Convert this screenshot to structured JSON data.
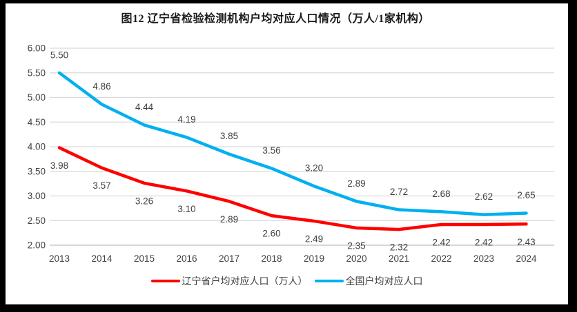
{
  "title": "图12 辽宁省检验检测机构户均对应人口情况（万人/1家机构）",
  "legend": {
    "liaoning_label": "辽宁省户均对应人口（万人）",
    "national_label": "全国户均对应人口"
  },
  "colors": {
    "liaoning_series": "#FF0000",
    "national_series": "#00B0F0",
    "gridline": "#D9D9D9",
    "axis_line": "#BFBFBF",
    "tick_text": "#404040",
    "data_label_text": "#404040",
    "frame": "#000000",
    "background": "#FFFFFF"
  },
  "chart_data": {
    "type": "line",
    "title": "图12 辽宁省检验检测机构户均对应人口情况（万人/1家机构）",
    "categories": [
      "2013",
      "2014",
      "2015",
      "2016",
      "2017",
      "2018",
      "2019",
      "2020",
      "2021",
      "2022",
      "2023",
      "2024"
    ],
    "series": [
      {
        "id": "liaoning",
        "name": "辽宁省户均对应人口（万人）",
        "color": "#FF0000",
        "values": [
          3.98,
          3.57,
          3.26,
          3.1,
          2.89,
          2.6,
          2.49,
          2.35,
          2.32,
          2.42,
          2.42,
          2.43
        ],
        "label_position": "below"
      },
      {
        "id": "national",
        "name": "全国户均对应人口",
        "color": "#00B0F0",
        "values": [
          5.5,
          4.86,
          4.44,
          4.19,
          3.85,
          3.56,
          3.2,
          2.89,
          2.72,
          2.68,
          2.62,
          2.65
        ],
        "label_position": "above"
      }
    ],
    "xlabel": "",
    "ylabel": "",
    "ylim": [
      2.0,
      6.0
    ],
    "yticks": [
      2.0,
      2.5,
      3.0,
      3.5,
      4.0,
      4.5,
      5.0,
      5.5,
      6.0
    ],
    "ytick_format": "two_decimals",
    "grid": true,
    "data_labels": true,
    "legend_position": "bottom"
  }
}
